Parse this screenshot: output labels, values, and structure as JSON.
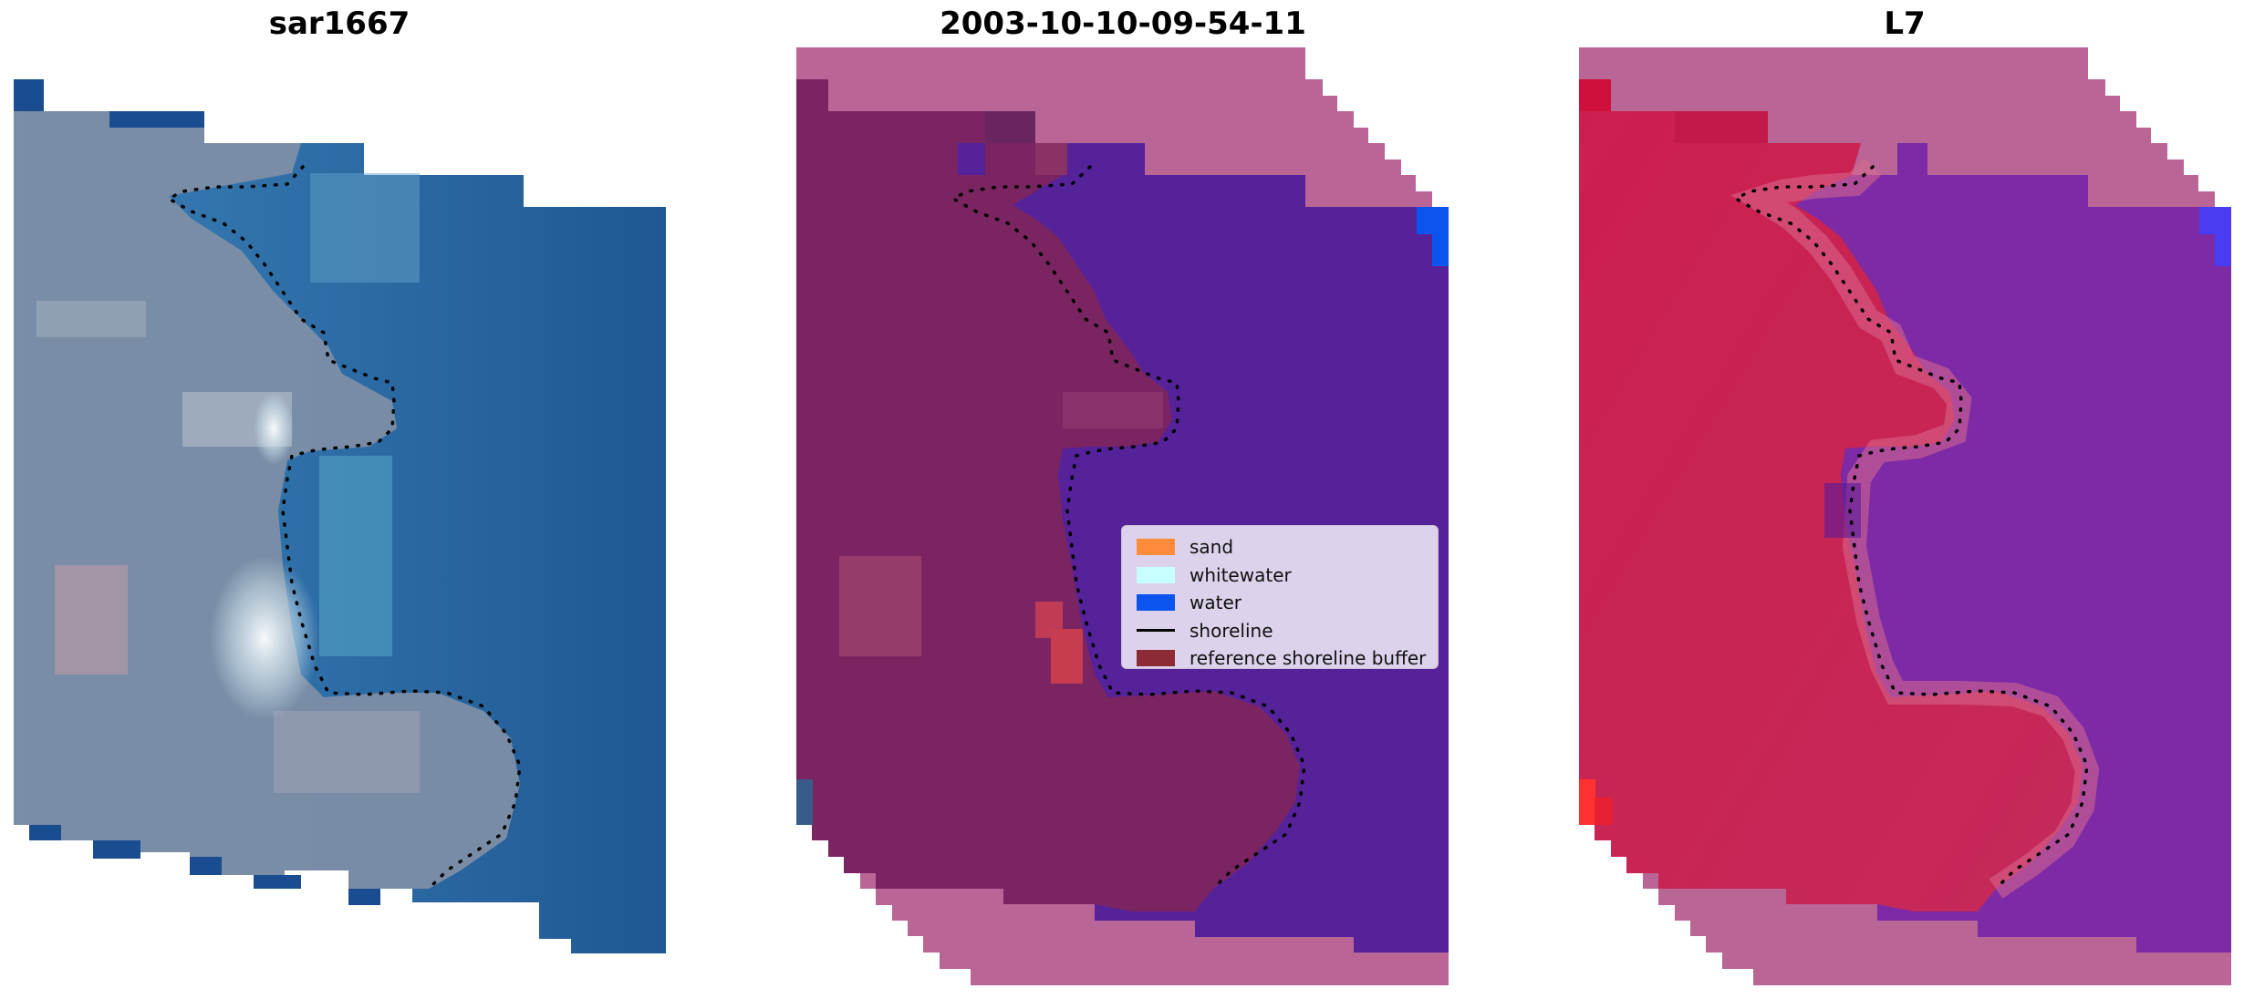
{
  "panels": [
    {
      "title": "sar1667"
    },
    {
      "title": "2003-10-10-09-54-11"
    },
    {
      "title": "L7"
    }
  ],
  "legend": {
    "items": [
      {
        "label": "sand",
        "color": "#ff8c3a",
        "kind": "patch"
      },
      {
        "label": "whitewater",
        "color": "#c8ffff",
        "kind": "patch"
      },
      {
        "label": "water",
        "color": "#0a55f0",
        "kind": "patch"
      },
      {
        "label": "shoreline",
        "color": "#000000",
        "kind": "line"
      },
      {
        "label": "reference shoreline buffer",
        "color": "#8c2a35",
        "kind": "patch"
      }
    ]
  },
  "colors": {
    "rgb_water": "#2c6aa8",
    "rgb_land": "#7a8ca8",
    "class_land": "#7a2462",
    "class_water": "#55229a",
    "class_buffer": "#b96696",
    "mndwi_land": "#c8204e",
    "mndwi_water": "#7c2aa6"
  }
}
